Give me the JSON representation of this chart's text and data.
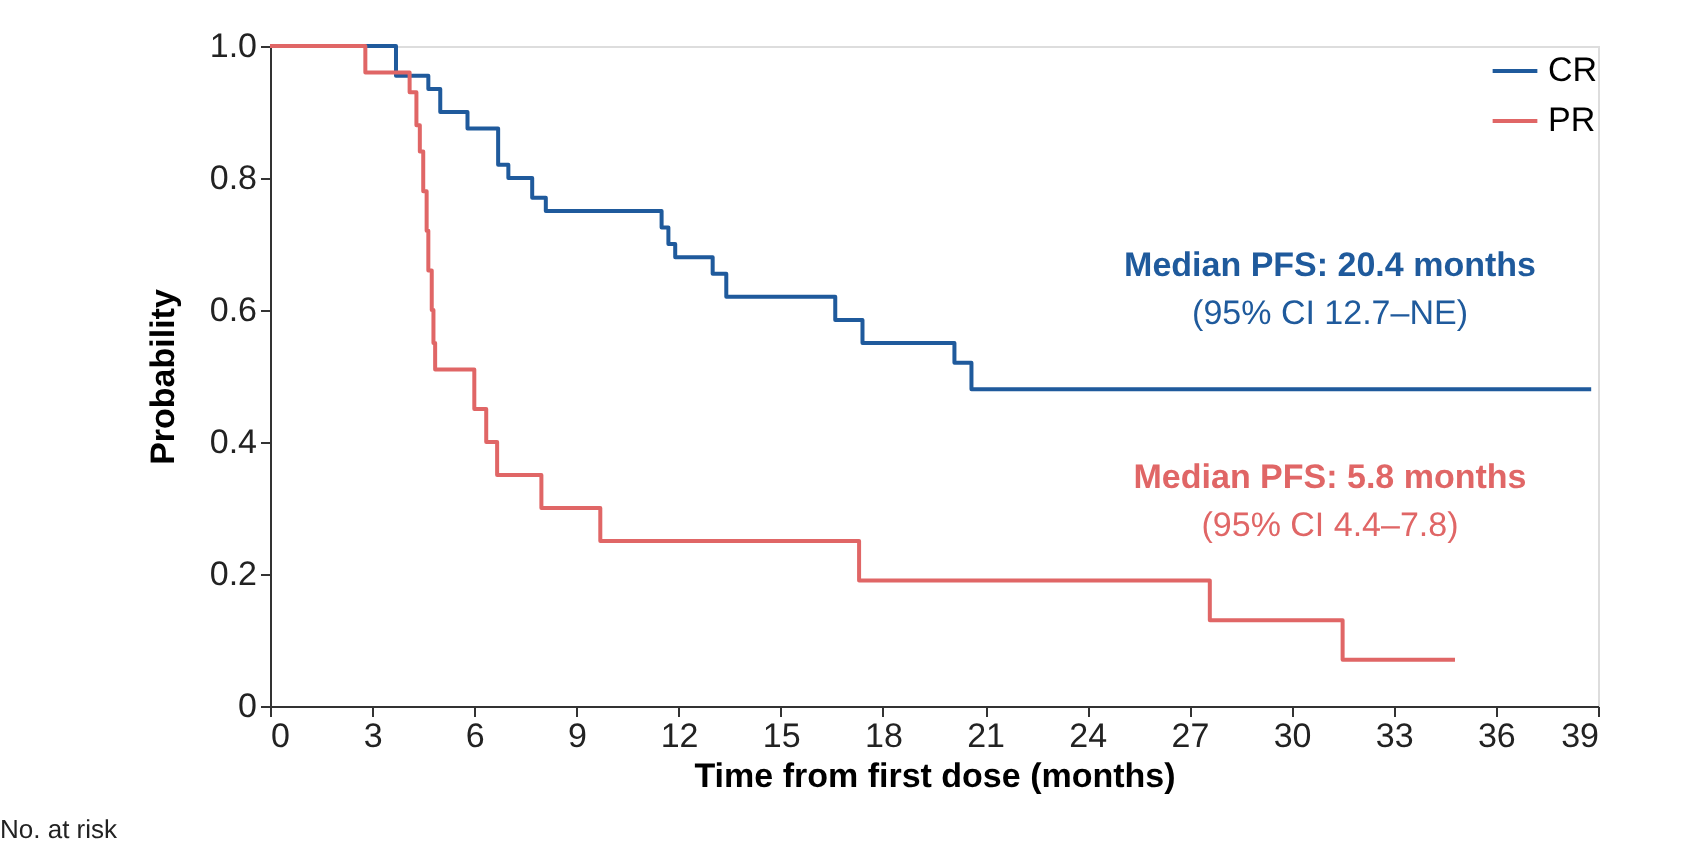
{
  "chart_data": {
    "type": "step",
    "xlabel": "Time from first dose (months)",
    "ylabel": "Probability",
    "xlim": [
      0,
      39
    ],
    "xticks": [
      0,
      3,
      6,
      9,
      12,
      15,
      18,
      21,
      24,
      27,
      30,
      33,
      36,
      39
    ],
    "ylim": [
      0,
      1
    ],
    "yticks": [
      {
        "value": 0,
        "label": "0"
      },
      0.2,
      0.4,
      0.6,
      0.8,
      {
        "value": 1,
        "label": "1.0"
      }
    ],
    "grid": false,
    "legend": "top right",
    "marker": "none",
    "line_style": "solid",
    "series": [
      {
        "name": "CR",
        "color": "#1f5a9c",
        "x": [
          0,
          3.7,
          4.65,
          5.0,
          5.8,
          6.7,
          7.0,
          7.7,
          8.1,
          11.5,
          11.7,
          11.9,
          13.0,
          13.4,
          16.6,
          17.4,
          20.1,
          20.6,
          38.8
        ],
        "values": [
          1.0,
          0.955,
          0.935,
          0.9,
          0.875,
          0.82,
          0.8,
          0.77,
          0.75,
          0.725,
          0.7,
          0.68,
          0.655,
          0.62,
          0.585,
          0.55,
          0.52,
          0.48,
          0.48
        ]
      },
      {
        "name": "PR",
        "color": "#e06666",
        "x": [
          0,
          2.8,
          4.1,
          4.3,
          4.4,
          4.5,
          4.6,
          4.65,
          4.75,
          4.8,
          4.85,
          6.0,
          6.35,
          6.67,
          7.97,
          9.7,
          17.3,
          27.6,
          31.5,
          34.8
        ],
        "values": [
          1.0,
          0.96,
          0.93,
          0.88,
          0.84,
          0.78,
          0.72,
          0.66,
          0.6,
          0.55,
          0.51,
          0.45,
          0.4,
          0.35,
          0.3,
          0.25,
          0.19,
          0.13,
          0.07,
          0.07
        ]
      }
    ],
    "annotations": [
      "Median PFS: 20.4 months",
      "(95% CI 12.7–NE)",
      "Median PFS: 5.8 months",
      "(95% CI 4.4–7.8)",
      "No. at risk"
    ]
  }
}
